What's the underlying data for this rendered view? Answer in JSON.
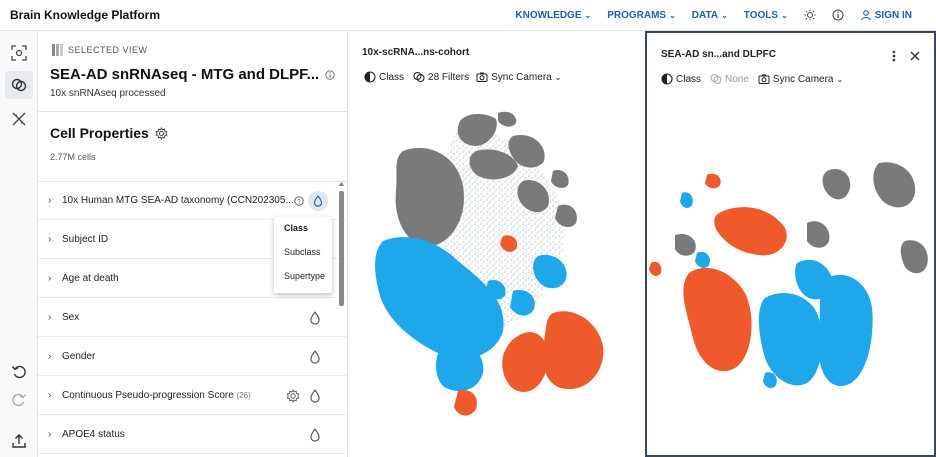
{
  "app": {
    "title": "Brain Knowledge Platform"
  },
  "nav": {
    "items": [
      {
        "label": "KNOWLEDGE"
      },
      {
        "label": "PROGRAMS"
      },
      {
        "label": "DATA"
      },
      {
        "label": "TOOLS"
      }
    ],
    "sign_in": "SIGN IN"
  },
  "selected_view": {
    "label": "SELECTED VIEW",
    "title": "SEA-AD snRNAseq - MTG and DLPF...",
    "subtitle": "10x snRNAseq processed"
  },
  "cell_properties": {
    "title": "Cell Properties",
    "count": "2.77M cells",
    "items": [
      {
        "label": "10x Human MTG SEA-AD taxonomy (CCN202305...",
        "count": ""
      },
      {
        "label": "Subject ID",
        "count": ""
      },
      {
        "label": "Age at death",
        "count": ""
      },
      {
        "label": "Sex",
        "count": ""
      },
      {
        "label": "Gender",
        "count": ""
      },
      {
        "label": "Continuous Pseudo-progression Score",
        "count": "(26)"
      },
      {
        "label": "APOE4 status",
        "count": ""
      }
    ]
  },
  "dropdown": {
    "options": [
      "Class",
      "Subclass",
      "Supertype"
    ],
    "selected": "Class"
  },
  "views": [
    {
      "title": "10x-scRNA...ns-cohort",
      "color_by": "Class",
      "filters": "28 Filters",
      "sync": "Sync Camera"
    },
    {
      "title": "SEA-AD sn...and DLPFC",
      "color_by": "Class",
      "filters": "None",
      "sync": "Sync Camera"
    }
  ],
  "colors": {
    "blue": "#1ea7ea",
    "orange": "#ee5a2c",
    "gray": "#7a7a7a",
    "nav": "#1f5fa8"
  }
}
